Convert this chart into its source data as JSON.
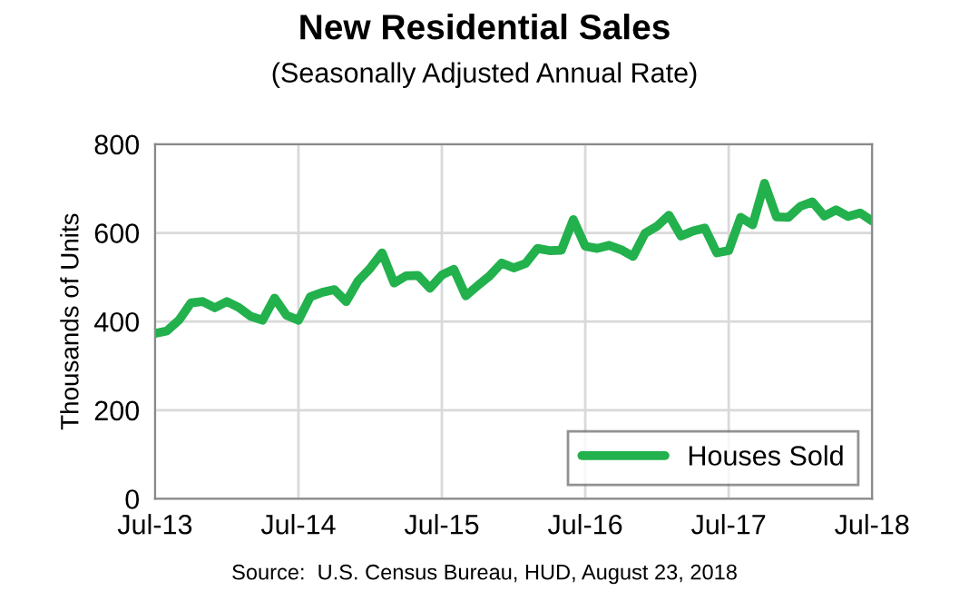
{
  "chart_data": {
    "type": "line",
    "title": "New Residential Sales",
    "subtitle": "(Seasonally Adjusted Annual Rate)",
    "ylabel": "Thousands of Units",
    "annotations": [
      "Source:  U.S. Census Bureau, HUD, August 23, 2018"
    ],
    "x": [
      "2013-07",
      "2013-08",
      "2013-09",
      "2013-10",
      "2013-11",
      "2013-12",
      "2014-01",
      "2014-02",
      "2014-03",
      "2014-04",
      "2014-05",
      "2014-06",
      "2014-07",
      "2014-08",
      "2014-09",
      "2014-10",
      "2014-11",
      "2014-12",
      "2015-01",
      "2015-02",
      "2015-03",
      "2015-04",
      "2015-05",
      "2015-06",
      "2015-07",
      "2015-08",
      "2015-09",
      "2015-10",
      "2015-11",
      "2015-12",
      "2016-01",
      "2016-02",
      "2016-03",
      "2016-04",
      "2016-05",
      "2016-06",
      "2016-07",
      "2016-08",
      "2016-09",
      "2016-10",
      "2016-11",
      "2016-12",
      "2017-01",
      "2017-02",
      "2017-03",
      "2017-04",
      "2017-05",
      "2017-06",
      "2017-07",
      "2017-08",
      "2017-09",
      "2017-10",
      "2017-11",
      "2017-12",
      "2018-01",
      "2018-02",
      "2018-03",
      "2018-04",
      "2018-05",
      "2018-06",
      "2018-07"
    ],
    "series": [
      {
        "name": "Houses Sold",
        "color": "#22b14c",
        "values": [
          373,
          379,
          403,
          442,
          445,
          431,
          445,
          432,
          412,
          403,
          453,
          414,
          403,
          456,
          466,
          472,
          445,
          492,
          520,
          555,
          487,
          503,
          504,
          475,
          505,
          518,
          458,
          481,
          503,
          532,
          521,
          531,
          565,
          560,
          561,
          630,
          570,
          565,
          572,
          562,
          547,
          599,
          615,
          640,
          593,
          604,
          611,
          555,
          560,
          635,
          618,
          712,
          636,
          635,
          660,
          670,
          638,
          652,
          637,
          645,
          627
        ]
      }
    ],
    "xlim": [
      "2013-07",
      "2018-07"
    ],
    "xticks": [
      {
        "value": "2013-07",
        "label": "Jul-13"
      },
      {
        "value": "2014-07",
        "label": "Jul-14"
      },
      {
        "value": "2015-07",
        "label": "Jul-15"
      },
      {
        "value": "2016-07",
        "label": "Jul-16"
      },
      {
        "value": "2017-07",
        "label": "Jul-17"
      },
      {
        "value": "2018-07",
        "label": "Jul-18"
      }
    ],
    "ylim": [
      0,
      800
    ],
    "yticks": [
      0,
      200,
      400,
      600,
      800
    ],
    "grid": true,
    "legend": "bottom right",
    "marker": "none",
    "line_style": "solid"
  }
}
